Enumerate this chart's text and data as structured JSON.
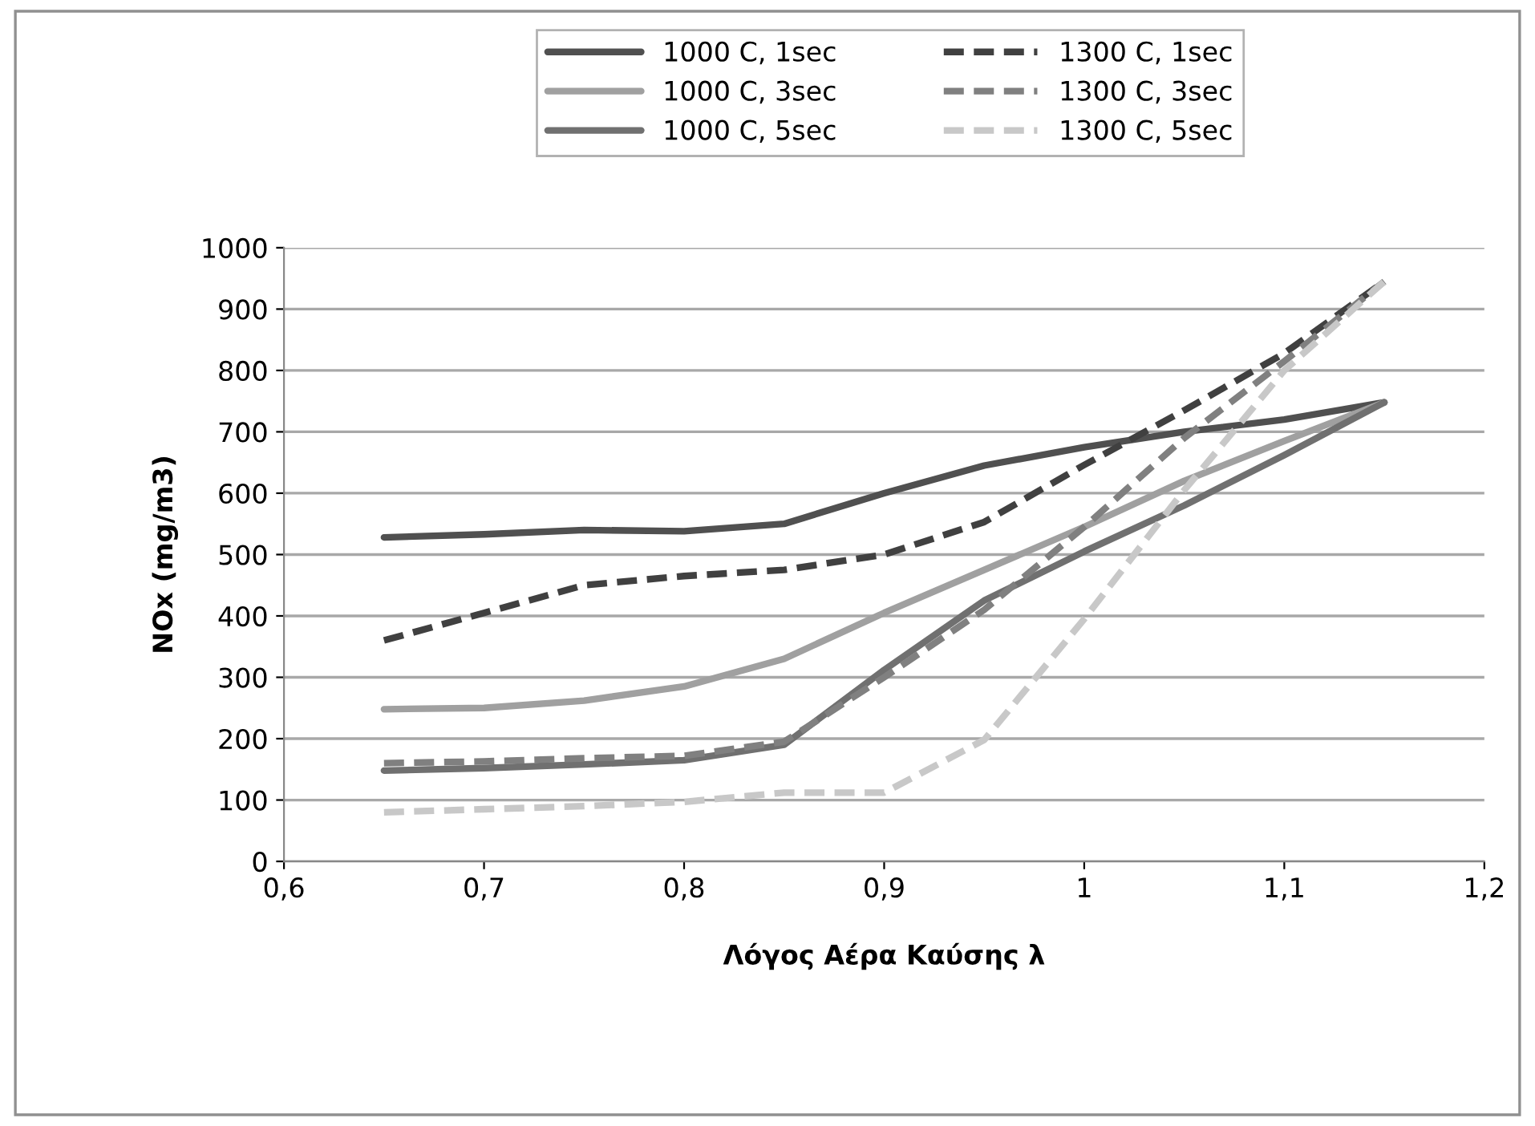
{
  "chart_data": {
    "type": "line",
    "xlabel": "Λόγος Αέρα Καύσης λ",
    "ylabel": "NOx (mg/m3)",
    "x": [
      0.65,
      0.7,
      0.75,
      0.8,
      0.85,
      0.9,
      0.95,
      1.0,
      1.05,
      1.1,
      1.15
    ],
    "series": [
      {
        "name": "1000 C, 1sec",
        "color": "#505050",
        "line_style": "solid",
        "values": [
          528,
          533,
          540,
          538,
          550,
          600,
          645,
          675,
          700,
          720,
          748
        ]
      },
      {
        "name": "1000 C, 3sec",
        "color": "#a0a0a0",
        "line_style": "solid",
        "values": [
          248,
          250,
          262,
          285,
          330,
          405,
          475,
          545,
          620,
          685,
          748
        ]
      },
      {
        "name": "1000 C, 5sec",
        "color": "#707070",
        "line_style": "solid",
        "values": [
          148,
          152,
          158,
          165,
          190,
          312,
          425,
          505,
          580,
          662,
          748
        ]
      },
      {
        "name": "1300 C, 1sec",
        "color": "#404040",
        "line_style": "dashed",
        "values": [
          360,
          405,
          450,
          465,
          475,
          500,
          553,
          646,
          735,
          828,
          945
        ]
      },
      {
        "name": "1300 C, 3sec",
        "color": "#808080",
        "line_style": "dashed",
        "values": [
          160,
          163,
          168,
          172,
          195,
          300,
          410,
          545,
          690,
          815,
          945
        ]
      },
      {
        "name": "1300 C, 5sec",
        "color": "#c8c8c8",
        "line_style": "dashed",
        "values": [
          80,
          85,
          90,
          97,
          112,
          112,
          198,
          395,
          605,
          800,
          945
        ]
      }
    ],
    "xlim": [
      0.6,
      1.2
    ],
    "xticks": [
      {
        "value": 0.6,
        "label": "0,6"
      },
      {
        "value": 0.7,
        "label": "0,7"
      },
      {
        "value": 0.8,
        "label": "0,8"
      },
      {
        "value": 0.9,
        "label": "0,9"
      },
      1,
      {
        "value": 1.1,
        "label": "1,1"
      },
      {
        "value": 1.2,
        "label": "1,2"
      }
    ],
    "ylim": [
      0,
      1000
    ],
    "yticks": [
      0,
      100,
      200,
      300,
      400,
      500,
      600,
      700,
      800,
      900,
      1000
    ],
    "grid": "y",
    "legend": "top",
    "marker": "none"
  }
}
